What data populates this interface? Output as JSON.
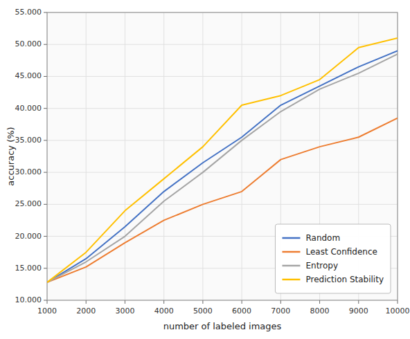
{
  "chart_data": {
    "type": "line",
    "x": [
      1000,
      2000,
      3000,
      4000,
      5000,
      6000,
      7000,
      8000,
      9000,
      10000
    ],
    "series": [
      {
        "name": "Random",
        "color": "#4472C4",
        "values": [
          12.8,
          16.5,
          21.5,
          27.0,
          31.5,
          35.5,
          40.5,
          43.5,
          46.5,
          49.0
        ]
      },
      {
        "name": "Least Confidence",
        "color": "#ED7D31",
        "values": [
          12.8,
          15.2,
          19.0,
          22.5,
          25.0,
          27.0,
          32.0,
          34.0,
          35.5,
          38.5
        ]
      },
      {
        "name": "Entropy",
        "color": "#A5A5A5",
        "values": [
          12.8,
          16.0,
          20.0,
          25.5,
          30.0,
          35.0,
          39.5,
          43.0,
          45.5,
          48.5
        ]
      },
      {
        "name": "Prediction Stability",
        "color": "#FFC000",
        "values": [
          12.8,
          17.5,
          24.0,
          29.0,
          34.0,
          40.5,
          42.0,
          44.5,
          49.5,
          51.0
        ]
      }
    ],
    "xlabel": "number of labeled images",
    "ylabel": "accuracy (%)",
    "xlim": [
      1000,
      10000
    ],
    "ylim": [
      10.0,
      55.0
    ],
    "xticks": [
      1000,
      2000,
      3000,
      4000,
      5000,
      6000,
      7000,
      8000,
      9000,
      10000
    ],
    "yticks": [
      {
        "value": 10,
        "label": "10.000"
      },
      {
        "value": 15,
        "label": "15.000"
      },
      {
        "value": 20,
        "label": "20.000"
      },
      {
        "value": 25,
        "label": "25.000"
      },
      {
        "value": 30,
        "label": "30.000"
      },
      {
        "value": 35,
        "label": "35.000"
      },
      {
        "value": 40,
        "label": "40.000"
      },
      {
        "value": 45,
        "label": "45.000"
      },
      {
        "value": 50,
        "label": "50.000"
      },
      {
        "value": 55,
        "label": "55.000"
      }
    ],
    "grid": true,
    "legend": "lower right"
  }
}
